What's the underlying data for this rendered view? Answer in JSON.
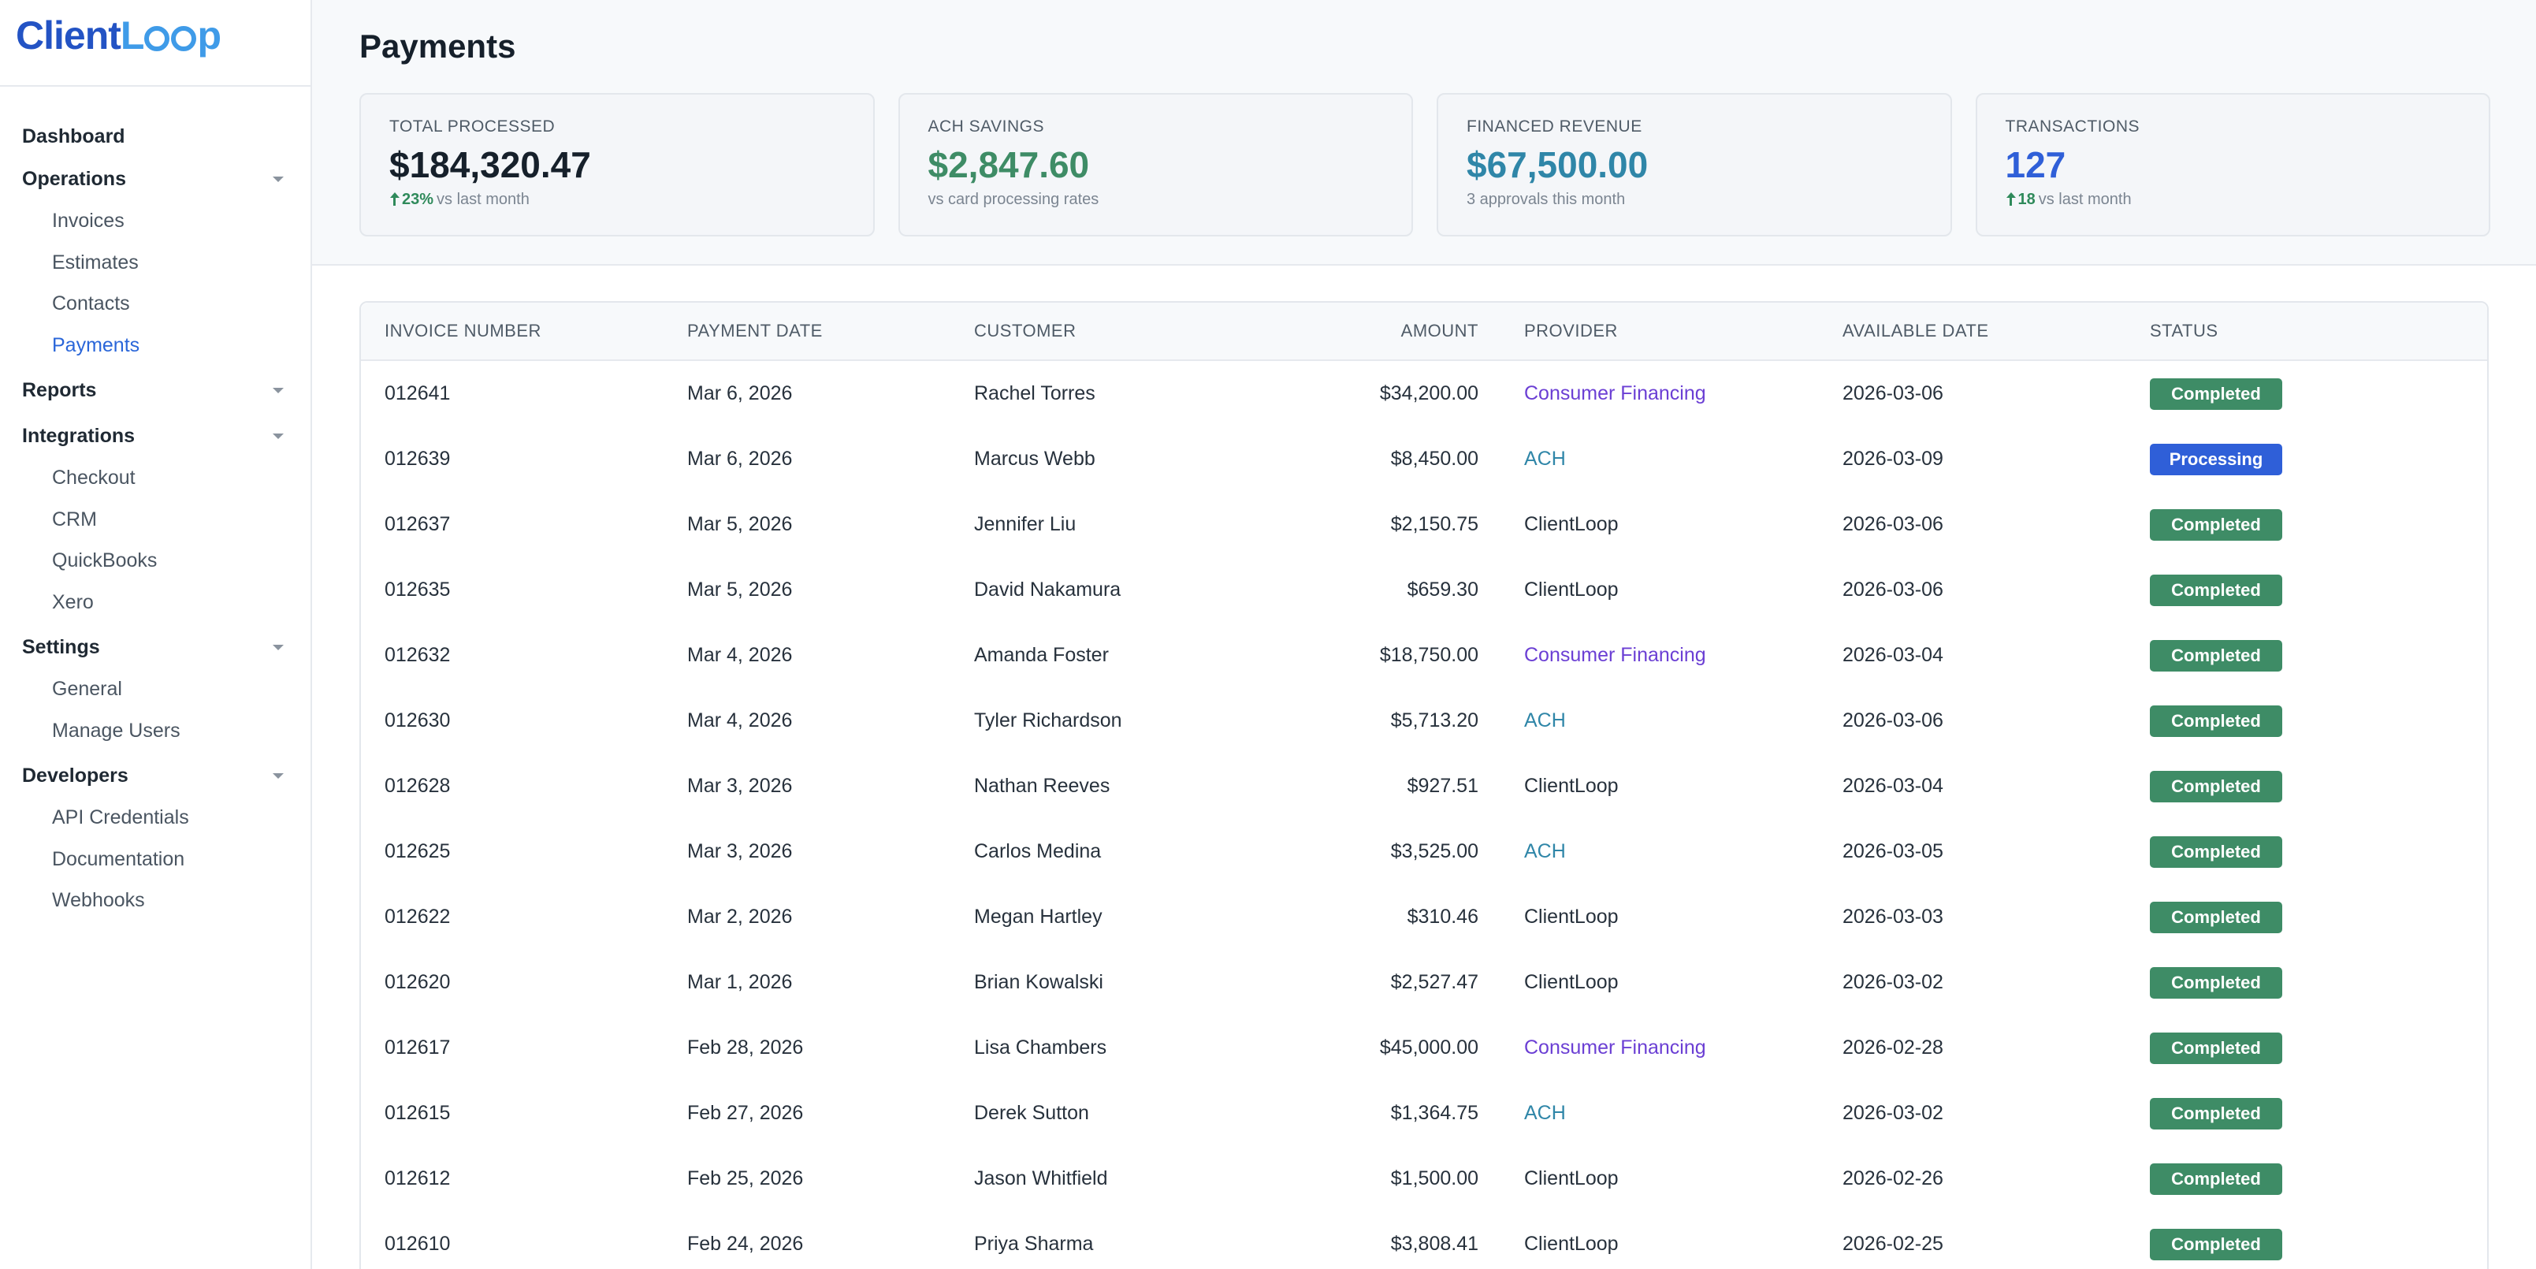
{
  "brand": {
    "part1": "Client",
    "part2": "L",
    "part3": "p"
  },
  "sidebar": {
    "dashboard": "Dashboard",
    "groups": [
      {
        "label": "Operations",
        "items": [
          "Invoices",
          "Estimates",
          "Contacts",
          "Payments"
        ],
        "active": "Payments"
      },
      {
        "label": "Reports",
        "items": []
      },
      {
        "label": "Integrations",
        "items": [
          "Checkout",
          "CRM",
          "QuickBooks",
          "Xero"
        ]
      },
      {
        "label": "Settings",
        "items": [
          "General",
          "Manage Users"
        ]
      },
      {
        "label": "Developers",
        "items": [
          "API Credentials",
          "Documentation",
          "Webhooks"
        ]
      }
    ]
  },
  "page": {
    "title": "Payments"
  },
  "cards": [
    {
      "label": "TOTAL PROCESSED",
      "value": "$184,320.47",
      "delta": "23%",
      "sub": "vs last month",
      "color": "#16202b"
    },
    {
      "label": "ACH SAVINGS",
      "value": "$2,847.60",
      "delta": "",
      "sub": "vs card processing rates",
      "color": "#3e8c66"
    },
    {
      "label": "FINANCED REVENUE",
      "value": "$67,500.00",
      "delta": "",
      "sub": "3 approvals this month",
      "color": "#2f86a8"
    },
    {
      "label": "TRANSACTIONS",
      "value": "127",
      "delta": "18",
      "sub": "vs last month",
      "color": "#2f5fd8"
    }
  ],
  "table": {
    "columns": [
      "INVOICE NUMBER",
      "PAYMENT DATE",
      "CUSTOMER",
      "AMOUNT",
      "PROVIDER",
      "AVAILABLE DATE",
      "STATUS"
    ],
    "rows": [
      {
        "invoice": "012641",
        "date": "Mar 6, 2026",
        "customer": "Rachel Torres",
        "amount": "$34,200.00",
        "provider": "Consumer Financing",
        "available": "2026-03-06",
        "status": "Completed"
      },
      {
        "invoice": "012639",
        "date": "Mar 6, 2026",
        "customer": "Marcus Webb",
        "amount": "$8,450.00",
        "provider": "ACH",
        "available": "2026-03-09",
        "status": "Processing"
      },
      {
        "invoice": "012637",
        "date": "Mar 5, 2026",
        "customer": "Jennifer Liu",
        "amount": "$2,150.75",
        "provider": "ClientLoop",
        "available": "2026-03-06",
        "status": "Completed"
      },
      {
        "invoice": "012635",
        "date": "Mar 5, 2026",
        "customer": "David Nakamura",
        "amount": "$659.30",
        "provider": "ClientLoop",
        "available": "2026-03-06",
        "status": "Completed"
      },
      {
        "invoice": "012632",
        "date": "Mar 4, 2026",
        "customer": "Amanda Foster",
        "amount": "$18,750.00",
        "provider": "Consumer Financing",
        "available": "2026-03-04",
        "status": "Completed"
      },
      {
        "invoice": "012630",
        "date": "Mar 4, 2026",
        "customer": "Tyler Richardson",
        "amount": "$5,713.20",
        "provider": "ACH",
        "available": "2026-03-06",
        "status": "Completed"
      },
      {
        "invoice": "012628",
        "date": "Mar 3, 2026",
        "customer": "Nathan Reeves",
        "amount": "$927.51",
        "provider": "ClientLoop",
        "available": "2026-03-04",
        "status": "Completed"
      },
      {
        "invoice": "012625",
        "date": "Mar 3, 2026",
        "customer": "Carlos Medina",
        "amount": "$3,525.00",
        "provider": "ACH",
        "available": "2026-03-05",
        "status": "Completed"
      },
      {
        "invoice": "012622",
        "date": "Mar 2, 2026",
        "customer": "Megan Hartley",
        "amount": "$310.46",
        "provider": "ClientLoop",
        "available": "2026-03-03",
        "status": "Completed"
      },
      {
        "invoice": "012620",
        "date": "Mar 1, 2026",
        "customer": "Brian Kowalski",
        "amount": "$2,527.47",
        "provider": "ClientLoop",
        "available": "2026-03-02",
        "status": "Completed"
      },
      {
        "invoice": "012617",
        "date": "Feb 28, 2026",
        "customer": "Lisa Chambers",
        "amount": "$45,000.00",
        "provider": "Consumer Financing",
        "available": "2026-02-28",
        "status": "Completed"
      },
      {
        "invoice": "012615",
        "date": "Feb 27, 2026",
        "customer": "Derek Sutton",
        "amount": "$1,364.75",
        "provider": "ACH",
        "available": "2026-03-02",
        "status": "Completed"
      },
      {
        "invoice": "012612",
        "date": "Feb 25, 2026",
        "customer": "Jason Whitfield",
        "amount": "$1,500.00",
        "provider": "ClientLoop",
        "available": "2026-02-26",
        "status": "Completed"
      },
      {
        "invoice": "012610",
        "date": "Feb 24, 2026",
        "customer": "Priya Sharma",
        "amount": "$3,808.41",
        "provider": "ClientLoop",
        "available": "2026-02-25",
        "status": "Completed"
      }
    ]
  },
  "colors": {
    "provider_consumer_financing": "#6b3fd4",
    "provider_ach": "#2f86a8",
    "status_completed": "#3e8c66",
    "status_processing": "#2f5fd8",
    "nav_active": "#2a66d9"
  },
  "icons": {
    "caret": "chevron-down-icon",
    "delta": "arrow-up-icon"
  }
}
